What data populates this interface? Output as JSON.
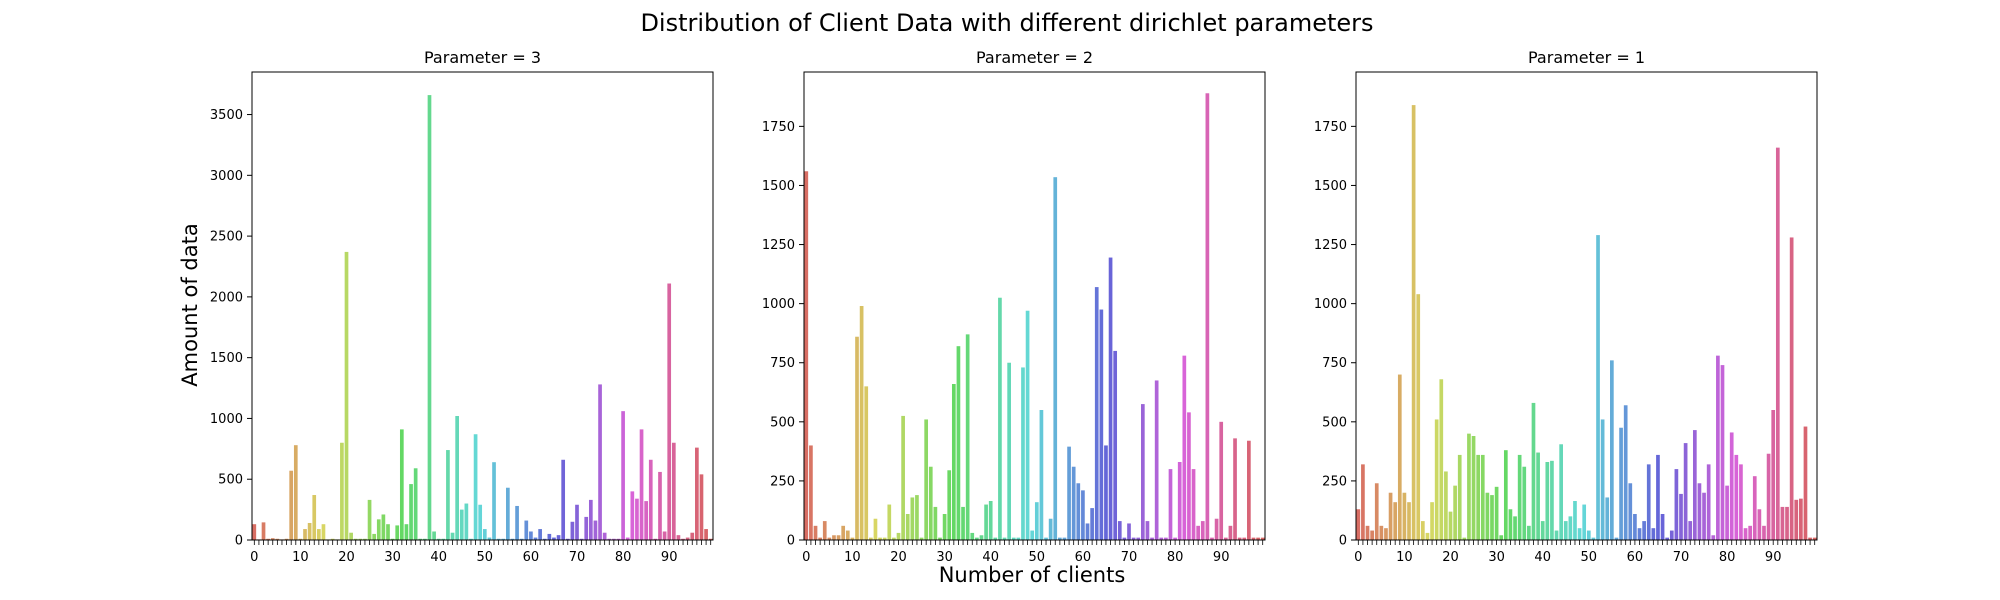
{
  "figure": {
    "title": "Distribution of Client Data with different dirichlet parameters",
    "xlabel": "Number of clients",
    "ylabel": "Amount of data"
  },
  "chart_data": [
    {
      "type": "bar",
      "title": "Parameter = 3",
      "xlabel": "Number of clients",
      "ylabel": "Amount of data",
      "ylim": [
        0,
        3850
      ],
      "yticks": [
        0,
        500,
        1000,
        1500,
        2000,
        2500,
        3000,
        3500
      ],
      "xticks": [
        0,
        10,
        20,
        30,
        40,
        50,
        60,
        70,
        80,
        90
      ],
      "categories": [
        0,
        1,
        2,
        3,
        4,
        5,
        6,
        7,
        8,
        9,
        10,
        11,
        12,
        13,
        14,
        15,
        16,
        17,
        18,
        19,
        20,
        21,
        22,
        23,
        24,
        25,
        26,
        27,
        28,
        29,
        30,
        31,
        32,
        33,
        34,
        35,
        36,
        37,
        38,
        39,
        40,
        41,
        42,
        43,
        44,
        45,
        46,
        47,
        48,
        49,
        50,
        51,
        52,
        53,
        54,
        55,
        56,
        57,
        58,
        59,
        60,
        61,
        62,
        63,
        64,
        65,
        66,
        67,
        68,
        69,
        70,
        71,
        72,
        73,
        74,
        75,
        76,
        77,
        78,
        79,
        80,
        81,
        82,
        83,
        84,
        85,
        86,
        87,
        88,
        89,
        90,
        91,
        92,
        93,
        94,
        95,
        96,
        97,
        98,
        99
      ],
      "values": [
        130,
        5,
        145,
        10,
        15,
        10,
        5,
        10,
        570,
        780,
        10,
        90,
        140,
        370,
        90,
        130,
        5,
        10,
        5,
        800,
        2370,
        60,
        10,
        10,
        10,
        330,
        50,
        170,
        210,
        130,
        10,
        120,
        910,
        130,
        460,
        590,
        10,
        10,
        3660,
        70,
        10,
        10,
        740,
        60,
        1020,
        250,
        300,
        10,
        870,
        290,
        90,
        20,
        640,
        10,
        10,
        430,
        10,
        280,
        10,
        160,
        70,
        20,
        90,
        10,
        50,
        20,
        40,
        660,
        10,
        150,
        290,
        10,
        190,
        330,
        160,
        1280,
        60,
        10,
        10,
        10,
        1060,
        20,
        400,
        340,
        910,
        320,
        660,
        10,
        560,
        70,
        2110,
        800,
        40,
        10,
        20,
        60,
        760,
        540,
        90,
        10
      ],
      "grid": false,
      "legend": "none"
    },
    {
      "type": "bar",
      "title": "Parameter = 2",
      "xlabel": "Number of clients",
      "ylabel": "Amount of data",
      "ylim": [
        0,
        1980
      ],
      "yticks": [
        0,
        250,
        500,
        750,
        1000,
        1250,
        1500,
        1750
      ],
      "xticks": [
        0,
        10,
        20,
        30,
        40,
        50,
        60,
        70,
        80,
        90
      ],
      "categories": [
        0,
        1,
        2,
        3,
        4,
        5,
        6,
        7,
        8,
        9,
        10,
        11,
        12,
        13,
        14,
        15,
        16,
        17,
        18,
        19,
        20,
        21,
        22,
        23,
        24,
        25,
        26,
        27,
        28,
        29,
        30,
        31,
        32,
        33,
        34,
        35,
        36,
        37,
        38,
        39,
        40,
        41,
        42,
        43,
        44,
        45,
        46,
        47,
        48,
        49,
        50,
        51,
        52,
        53,
        54,
        55,
        56,
        57,
        58,
        59,
        60,
        61,
        62,
        63,
        64,
        65,
        66,
        67,
        68,
        69,
        70,
        71,
        72,
        73,
        74,
        75,
        76,
        77,
        78,
        79,
        80,
        81,
        82,
        83,
        84,
        85,
        86,
        87,
        88,
        89,
        90,
        91,
        92,
        93,
        94,
        95,
        96,
        97,
        98,
        99
      ],
      "values": [
        1560,
        400,
        60,
        10,
        80,
        10,
        20,
        20,
        60,
        40,
        10,
        860,
        990,
        650,
        10,
        90,
        10,
        10,
        150,
        10,
        30,
        525,
        110,
        180,
        190,
        10,
        510,
        310,
        140,
        10,
        110,
        295,
        660,
        820,
        140,
        870,
        30,
        10,
        20,
        150,
        165,
        10,
        1025,
        10,
        750,
        10,
        10,
        730,
        970,
        40,
        160,
        550,
        10,
        90,
        1535,
        10,
        10,
        395,
        310,
        240,
        210,
        70,
        135,
        1070,
        975,
        400,
        1195,
        800,
        80,
        10,
        70,
        10,
        10,
        575,
        80,
        10,
        675,
        10,
        10,
        300,
        10,
        330,
        780,
        540,
        300,
        60,
        80,
        1890,
        10,
        90,
        500,
        10,
        60,
        430,
        10,
        10,
        420,
        10,
        10,
        10
      ],
      "grid": false,
      "legend": "none"
    },
    {
      "type": "bar",
      "title": "Parameter = 1",
      "xlabel": "Number of clients",
      "ylabel": "Amount of data",
      "ylim": [
        0,
        1980
      ],
      "yticks": [
        0,
        250,
        500,
        750,
        1000,
        1250,
        1500,
        1750
      ],
      "xticks": [
        0,
        10,
        20,
        30,
        40,
        50,
        60,
        70,
        80,
        90
      ],
      "categories": [
        0,
        1,
        2,
        3,
        4,
        5,
        6,
        7,
        8,
        9,
        10,
        11,
        12,
        13,
        14,
        15,
        16,
        17,
        18,
        19,
        20,
        21,
        22,
        23,
        24,
        25,
        26,
        27,
        28,
        29,
        30,
        31,
        32,
        33,
        34,
        35,
        36,
        37,
        38,
        39,
        40,
        41,
        42,
        43,
        44,
        45,
        46,
        47,
        48,
        49,
        50,
        51,
        52,
        53,
        54,
        55,
        56,
        57,
        58,
        59,
        60,
        61,
        62,
        63,
        64,
        65,
        66,
        67,
        68,
        69,
        70,
        71,
        72,
        73,
        74,
        75,
        76,
        77,
        78,
        79,
        80,
        81,
        82,
        83,
        84,
        85,
        86,
        87,
        88,
        89,
        90,
        91,
        92,
        93,
        94,
        95,
        96,
        97,
        98,
        99
      ],
      "values": [
        130,
        320,
        60,
        40,
        240,
        60,
        50,
        200,
        160,
        700,
        200,
        160,
        1840,
        1040,
        80,
        30,
        160,
        510,
        680,
        290,
        120,
        230,
        360,
        10,
        450,
        440,
        360,
        360,
        200,
        190,
        225,
        20,
        380,
        130,
        100,
        360,
        310,
        60,
        580,
        370,
        80,
        330,
        335,
        40,
        405,
        80,
        100,
        165,
        50,
        150,
        40,
        10,
        1290,
        510,
        180,
        760,
        10,
        475,
        570,
        240,
        110,
        50,
        80,
        320,
        50,
        360,
        110,
        10,
        40,
        300,
        195,
        410,
        80,
        465,
        240,
        200,
        320,
        20,
        780,
        740,
        230,
        455,
        360,
        320,
        50,
        60,
        270,
        130,
        60,
        365,
        550,
        1660,
        140,
        140,
        1280,
        170,
        175,
        480,
        10,
        10
      ],
      "grid": false,
      "legend": "none"
    }
  ]
}
